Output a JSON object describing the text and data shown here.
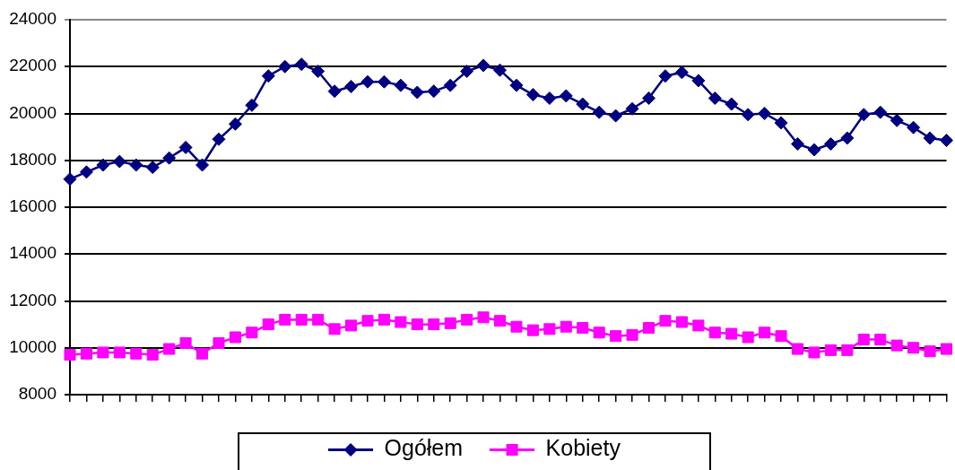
{
  "chart_data": {
    "type": "line",
    "categories": [
      null,
      null,
      null,
      null,
      null,
      null,
      null,
      null,
      null,
      null,
      null,
      null,
      null,
      null,
      null,
      null,
      null,
      null,
      null,
      null,
      null,
      null,
      null,
      null,
      null,
      null,
      null,
      null,
      null,
      null,
      null,
      null,
      null,
      null,
      null,
      null,
      null,
      null,
      null,
      null,
      null,
      null,
      null,
      null,
      null,
      null,
      null,
      null,
      null,
      null,
      null,
      null,
      null,
      null
    ],
    "series": [
      {
        "name": "Ogółem",
        "color": "#000080",
        "marker": "diamond",
        "values": [
          17200,
          17500,
          17800,
          17950,
          17800,
          17700,
          18100,
          18550,
          17800,
          18900,
          19550,
          20350,
          21600,
          22000,
          22100,
          21800,
          20950,
          21150,
          21350,
          21350,
          21200,
          20900,
          20950,
          21200,
          21800,
          22050,
          21850,
          21200,
          20800,
          20650,
          20750,
          20400,
          20050,
          19900,
          20200,
          20650,
          21600,
          21750,
          21400,
          20650,
          20400,
          19950,
          20000,
          19600,
          18700,
          18450,
          18700,
          18950,
          19950,
          20050,
          19700,
          19400,
          18950,
          18850
        ]
      },
      {
        "name": "Kobiety",
        "color": "#ff00ff",
        "marker": "square",
        "values": [
          9700,
          9750,
          9800,
          9800,
          9750,
          9700,
          9950,
          10200,
          9750,
          10200,
          10450,
          10650,
          11000,
          11200,
          11200,
          11200,
          10800,
          10950,
          11150,
          11200,
          11100,
          11000,
          11000,
          11050,
          11200,
          11300,
          11150,
          10900,
          10750,
          10800,
          10900,
          10850,
          10650,
          10500,
          10550,
          10850,
          11150,
          11100,
          10950,
          10650,
          10600,
          10450,
          10650,
          10500,
          9950,
          9800,
          9900,
          9900,
          10350,
          10350,
          10100,
          10000,
          9850,
          9950
        ]
      }
    ],
    "ylim": [
      8000,
      24000
    ],
    "yticks": [
      8000,
      10000,
      12000,
      14000,
      16000,
      18000,
      20000,
      22000,
      24000
    ],
    "grid": "y",
    "legend": "bottom",
    "tick_labels": "y"
  }
}
